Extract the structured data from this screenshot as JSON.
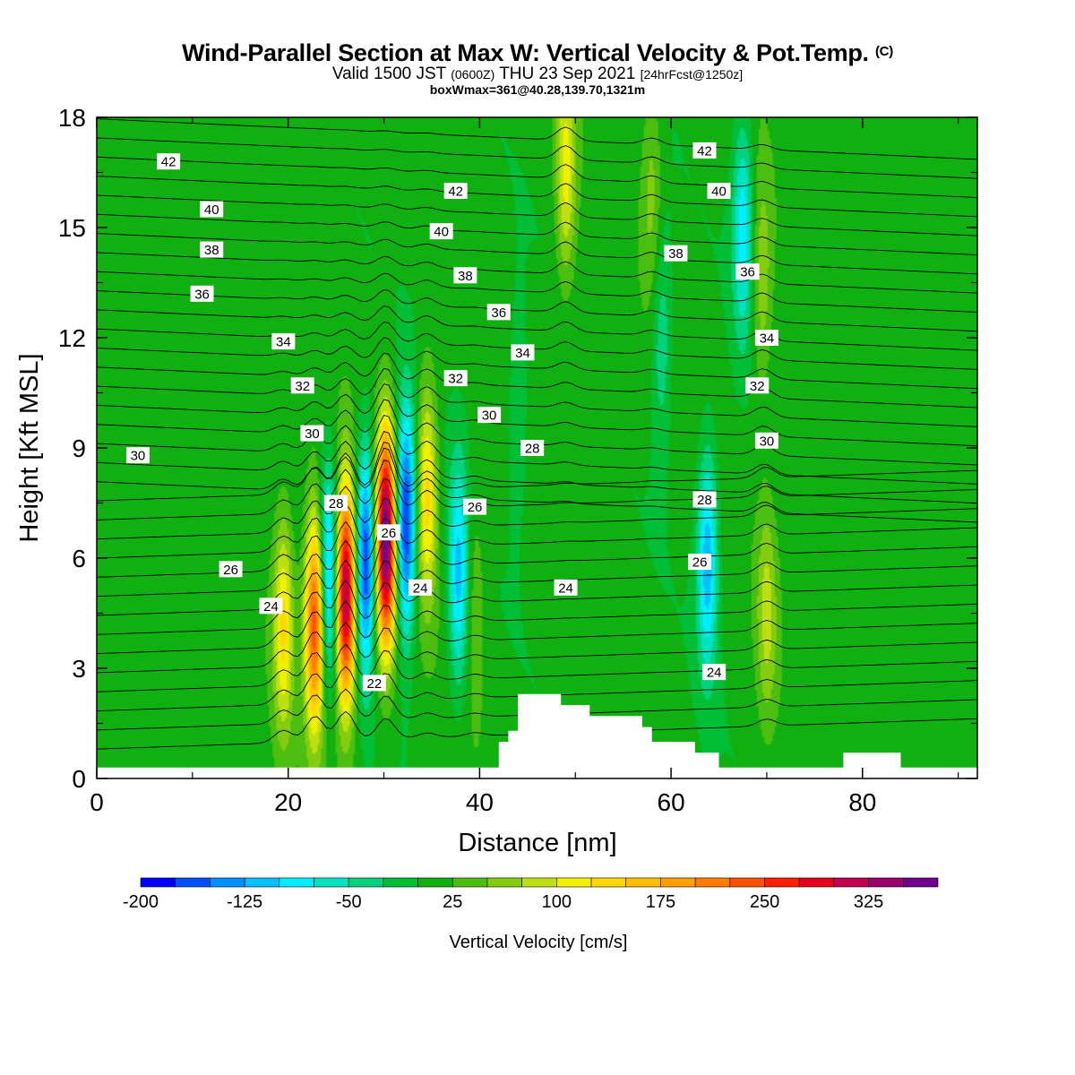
{
  "header": {
    "title": "Wind-Parallel Section at Max W: Vertical Velocity & Pot.Temp.",
    "copyright": "(C)",
    "valid_prefix": "Valid 1500 JST",
    "valid_utc": "(0600Z)",
    "valid_date": "THU 23 Sep 2021",
    "forecast": "[24hrFcst@1250z]",
    "boxw": "boxWmax=361@40.28,139.70,1321m"
  },
  "colorbar": {
    "label": "Vertical Velocity [cm/s]",
    "tick_labels": [
      "-200",
      "-125",
      "-50",
      "25",
      "100",
      "175",
      "250",
      "325"
    ],
    "tick_values": [
      -200,
      -125,
      -50,
      25,
      100,
      175,
      250,
      325
    ],
    "levels": [
      -200,
      -175,
      -150,
      -125,
      -100,
      -75,
      -50,
      -25,
      0,
      25,
      50,
      75,
      100,
      125,
      150,
      175,
      200,
      225,
      250,
      275,
      300,
      325,
      350
    ],
    "colors": [
      "#0000ff",
      "#0050ff",
      "#0090ff",
      "#00c0ff",
      "#00eeff",
      "#00e2c2",
      "#00d27e",
      "#00be36",
      "#10b010",
      "#4cbe10",
      "#84cc10",
      "#bee010",
      "#f0f000",
      "#ffd800",
      "#ffbe00",
      "#ffa000",
      "#ff7c00",
      "#ff5000",
      "#ff1e00",
      "#e6001e",
      "#c00050",
      "#98006e",
      "#70008c"
    ]
  },
  "chart_data": {
    "type": "heatmap",
    "title": "Wind-Parallel Section at Max W: Vertical Velocity & Pot.Temp.",
    "xlabel": "Distance [nm]",
    "ylabel": "Height [Kft MSL]",
    "xlim": [
      0,
      92
    ],
    "ylim": [
      0,
      18
    ],
    "x_ticks": [
      0,
      20,
      40,
      60,
      80
    ],
    "y_ticks": [
      0,
      3,
      6,
      9,
      12,
      15,
      18
    ],
    "fill_variable": "Vertical Velocity [cm/s]",
    "w_max": 361,
    "background_w": 10,
    "updraft_cores": [
      {
        "x": 19.5,
        "z": 4.2,
        "w": 120
      },
      {
        "x": 22.8,
        "z": 4.3,
        "w": 250
      },
      {
        "x": 26.0,
        "z": 5.0,
        "w": 330
      },
      {
        "x": 30.2,
        "z": 6.5,
        "w": 361
      },
      {
        "x": 34.5,
        "z": 7.8,
        "w": 130
      },
      {
        "x": 39.5,
        "z": 5.0,
        "w": 40
      },
      {
        "x": 70.0,
        "z": 4.5,
        "w": 70
      },
      {
        "x": 69.5,
        "z": 13.5,
        "w": 60
      },
      {
        "x": 49.0,
        "z": 16.5,
        "w": 100
      },
      {
        "x": 58.0,
        "z": 16.0,
        "w": 50
      }
    ],
    "downdraft_cores": [
      {
        "x": 24.2,
        "z": 5.5,
        "w": -150
      },
      {
        "x": 28.1,
        "z": 6.0,
        "w": -190
      },
      {
        "x": 32.3,
        "z": 7.0,
        "w": -200
      },
      {
        "x": 37.8,
        "z": 5.5,
        "w": -120
      },
      {
        "x": 63.8,
        "z": 6.0,
        "w": -130
      },
      {
        "x": 67.5,
        "z": 15.0,
        "w": -100
      },
      {
        "x": 59.0,
        "z": 12.0,
        "w": -60
      },
      {
        "x": 44.0,
        "z": 10.0,
        "w": -40
      }
    ],
    "theta_contour_labels": [
      {
        "text": "42",
        "x": 7.5,
        "z": 16.8
      },
      {
        "text": "40",
        "x": 12.0,
        "z": 15.5
      },
      {
        "text": "38",
        "x": 12.0,
        "z": 14.4
      },
      {
        "text": "36",
        "x": 11.0,
        "z": 13.2
      },
      {
        "text": "34",
        "x": 19.5,
        "z": 11.9
      },
      {
        "text": "32",
        "x": 21.5,
        "z": 10.7
      },
      {
        "text": "30",
        "x": 22.5,
        "z": 9.4
      },
      {
        "text": "30",
        "x": 4.3,
        "z": 8.8
      },
      {
        "text": "28",
        "x": 25.0,
        "z": 7.5
      },
      {
        "text": "26",
        "x": 30.5,
        "z": 6.7
      },
      {
        "text": "26",
        "x": 14.0,
        "z": 5.7
      },
      {
        "text": "24",
        "x": 18.2,
        "z": 4.7
      },
      {
        "text": "24",
        "x": 33.8,
        "z": 5.2
      },
      {
        "text": "22",
        "x": 29.0,
        "z": 2.6
      },
      {
        "text": "42",
        "x": 37.5,
        "z": 16.0
      },
      {
        "text": "40",
        "x": 36.0,
        "z": 14.9
      },
      {
        "text": "38",
        "x": 38.5,
        "z": 13.7
      },
      {
        "text": "36",
        "x": 42.0,
        "z": 12.7
      },
      {
        "text": "34",
        "x": 44.5,
        "z": 11.6
      },
      {
        "text": "32",
        "x": 37.5,
        "z": 10.9
      },
      {
        "text": "30",
        "x": 41.0,
        "z": 9.9
      },
      {
        "text": "28",
        "x": 45.5,
        "z": 9.0
      },
      {
        "text": "26",
        "x": 39.5,
        "z": 7.4
      },
      {
        "text": "24",
        "x": 49.0,
        "z": 5.2
      },
      {
        "text": "42",
        "x": 63.5,
        "z": 17.1
      },
      {
        "text": "40",
        "x": 65.0,
        "z": 16.0
      },
      {
        "text": "38",
        "x": 60.5,
        "z": 14.3
      },
      {
        "text": "36",
        "x": 68.0,
        "z": 13.8
      },
      {
        "text": "34",
        "x": 70.0,
        "z": 12.0
      },
      {
        "text": "32",
        "x": 69.0,
        "z": 10.7
      },
      {
        "text": "30",
        "x": 70.0,
        "z": 9.2
      },
      {
        "text": "28",
        "x": 63.5,
        "z": 7.6
      },
      {
        "text": "26",
        "x": 63.0,
        "z": 5.9
      },
      {
        "text": "24",
        "x": 64.5,
        "z": 2.9
      }
    ],
    "terrain_profile": [
      [
        0,
        0.3
      ],
      [
        42,
        0.3
      ],
      [
        42,
        1.0
      ],
      [
        43,
        1.0
      ],
      [
        43,
        1.3
      ],
      [
        44,
        1.3
      ],
      [
        44,
        2.3
      ],
      [
        48.5,
        2.3
      ],
      [
        48.5,
        2.0
      ],
      [
        51.5,
        2.0
      ],
      [
        51.5,
        1.7
      ],
      [
        57,
        1.7
      ],
      [
        57,
        1.4
      ],
      [
        58,
        1.4
      ],
      [
        58,
        1.0
      ],
      [
        62.5,
        1.0
      ],
      [
        62.5,
        0.7
      ],
      [
        65,
        0.7
      ],
      [
        65,
        0.3
      ],
      [
        78,
        0.3
      ],
      [
        78,
        0.7
      ],
      [
        84,
        0.7
      ],
      [
        84,
        0.3
      ],
      [
        92,
        0.3
      ]
    ]
  }
}
